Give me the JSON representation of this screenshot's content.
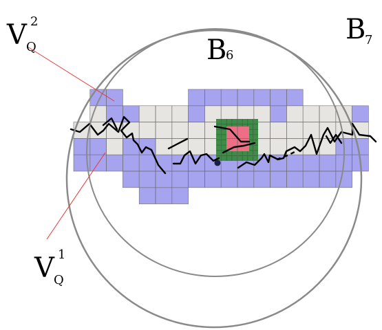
{
  "labels": {
    "vq2": {
      "main": "V",
      "sup": "2",
      "sub": "Q"
    },
    "vq1": {
      "main": "V",
      "sup": "1",
      "sub": "Q"
    },
    "b6": {
      "main": "B",
      "sub": "6"
    },
    "b7": {
      "main": "B",
      "sub": "7"
    }
  },
  "colors": {
    "outer_region": "#a6a3ef",
    "inner_region": "#e7e5e2",
    "green_box": "#3f8c48",
    "red_box": "#ec6f85",
    "grid_line": "#6c6c6c",
    "circle": "#8a8a8a",
    "pointer_line": "#e63a3a",
    "path": "#000000"
  },
  "grid_rows": [
    {
      "purple_cols": [
        1,
        2,
        7,
        8,
        9,
        10,
        11,
        12,
        13
      ],
      "gray_cols": []
    },
    {
      "purple_cols": [
        2,
        3,
        7,
        12,
        17
      ],
      "gray_cols": [
        1,
        4,
        5,
        6,
        8,
        9,
        10,
        11,
        13,
        14,
        15,
        16
      ]
    },
    {
      "purple_cols": [],
      "gray_cols": [
        0,
        1,
        2,
        3,
        4,
        5,
        6,
        7,
        8,
        9,
        10,
        11,
        12,
        13,
        14,
        15,
        16,
        17
      ]
    },
    {
      "purple_cols": [
        0,
        1,
        3,
        4,
        9,
        16,
        17
      ],
      "gray_cols": [
        2,
        5,
        6,
        7,
        8,
        10,
        11,
        12,
        13,
        14,
        15
      ]
    },
    {
      "purple_cols": [
        0,
        1,
        2,
        3,
        4,
        5,
        6,
        7,
        8,
        9,
        10,
        11,
        12,
        13,
        14,
        15,
        16,
        17
      ],
      "gray_cols": []
    },
    {
      "purple_cols": [
        3,
        4,
        5,
        6,
        7,
        8,
        9,
        10,
        11,
        12,
        13,
        14,
        15,
        16
      ],
      "gray_cols": []
    },
    {
      "purple_cols": [
        4,
        5,
        6
      ],
      "gray_cols": []
    }
  ]
}
